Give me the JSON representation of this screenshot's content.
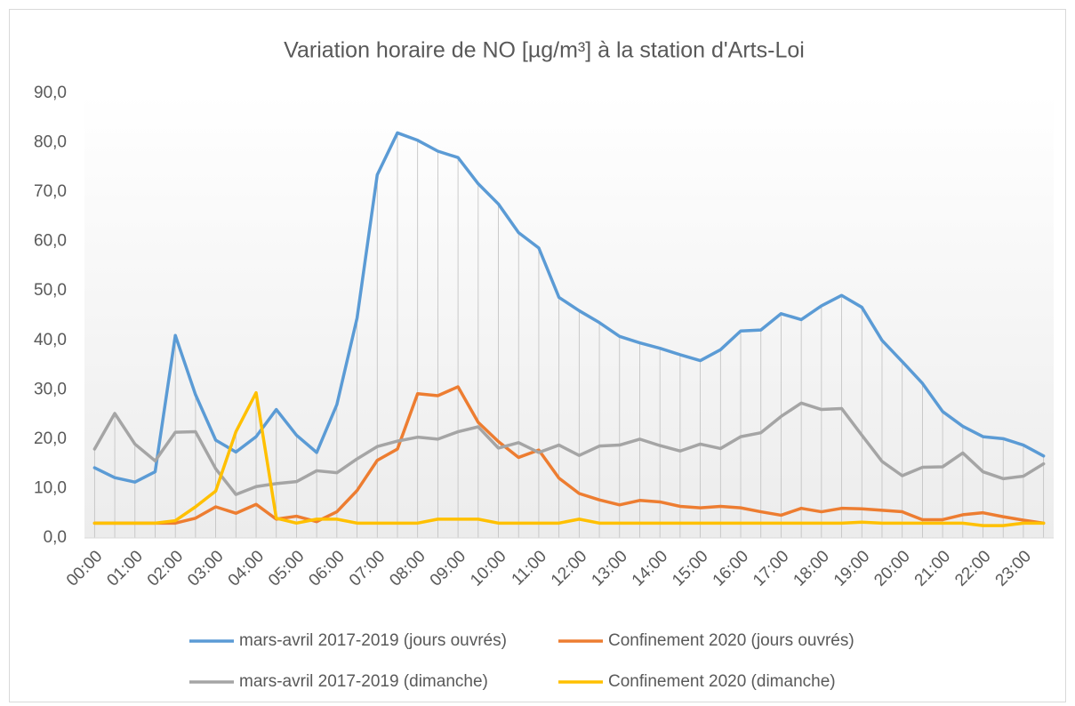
{
  "chart_data": {
    "type": "line",
    "title": "Variation horaire de NO [µg/m³] à la station d'Arts-Loi",
    "categories": [
      "00:00",
      null,
      "01:00",
      null,
      "02:00",
      null,
      "03:00",
      null,
      "04:00",
      null,
      "05:00",
      null,
      "06:00",
      null,
      "07:00",
      null,
      "08:00",
      null,
      "09:00",
      null,
      "10:00",
      null,
      "11:00",
      null,
      "12:00",
      null,
      "13:00",
      null,
      "14:00",
      null,
      "15:00",
      null,
      "16:00",
      null,
      "17:00",
      null,
      "18:00",
      null,
      "19:00",
      null,
      "20:00",
      null,
      "21:00",
      null,
      "22:00",
      null,
      "23:00",
      null
    ],
    "series": [
      {
        "name": "mars-avril 2017-2019 (jours ouvrés)",
        "color": "#5b9bd5",
        "values": [
          14.2,
          12.2,
          11.3,
          13.4,
          41,
          29,
          19.8,
          17.4,
          20.5,
          26,
          20.8,
          17.3,
          27,
          44.5,
          73.5,
          82,
          80.5,
          78.3,
          77,
          71.7,
          67.6,
          61.8,
          58.7,
          48.7,
          46,
          43.6,
          40.8,
          39.5,
          38.4,
          37.1,
          35.9,
          38.1,
          41.9,
          42.1,
          45.4,
          44.2,
          47,
          49.1,
          46.7,
          40,
          35.7,
          31.3,
          25.6,
          22.6,
          20.5,
          20.1,
          18.8,
          16.6
        ]
      },
      {
        "name": "Confinement 2020 (jours ouvrés)",
        "color": "#ed7d31",
        "values": [
          3,
          3,
          3,
          3,
          3,
          4,
          6.3,
          5,
          6.8,
          3.8,
          4.4,
          3.3,
          5.3,
          9.6,
          15.7,
          18,
          29.2,
          28.8,
          30.6,
          23.4,
          19.5,
          16.3,
          17.8,
          12.1,
          9,
          7.7,
          6.7,
          7.6,
          7.3,
          6.4,
          6.1,
          6.4,
          6.1,
          5.3,
          4.6,
          6,
          5.3,
          6,
          5.9,
          5.6,
          5.3,
          3.7,
          3.7,
          4.7,
          5.1,
          4.3,
          3.6,
          3
        ]
      },
      {
        "name": "mars-avril 2017-2019 (dimanche)",
        "color": "#a5a5a5",
        "values": [
          18,
          25.2,
          19,
          15.6,
          21.4,
          21.5,
          14,
          8.8,
          10.4,
          11,
          11.4,
          13.6,
          13.2,
          16,
          18.5,
          19.6,
          20.4,
          20,
          21.5,
          22.5,
          18.2,
          19.3,
          17.3,
          18.8,
          16.7,
          18.6,
          18.8,
          20,
          18.7,
          17.6,
          19,
          18.1,
          20.5,
          21.3,
          24.6,
          27.3,
          26,
          26.2,
          20.8,
          15.5,
          12.6,
          14.3,
          14.4,
          17.2,
          13.4,
          12,
          12.5,
          15
        ]
      },
      {
        "name": "Confinement 2020 (dimanche)",
        "color": "#ffc000",
        "values": [
          3,
          3,
          3,
          3,
          3.5,
          6.3,
          9.5,
          21.5,
          29.4,
          4,
          3,
          3.8,
          3.8,
          3,
          3,
          3,
          3,
          3.8,
          3.8,
          3.8,
          3,
          3,
          3,
          3,
          3.8,
          3,
          3,
          3,
          3,
          3,
          3,
          3,
          3,
          3,
          3,
          3,
          3,
          3,
          3.2,
          3,
          3,
          3,
          3,
          3,
          2.5,
          2.5,
          3,
          3
        ]
      }
    ],
    "ylim": [
      0,
      90
    ],
    "yticks": [
      {
        "value": 0,
        "label": "0,0"
      },
      {
        "value": 10,
        "label": "10,0"
      },
      {
        "value": 20,
        "label": "20,0"
      },
      {
        "value": 30,
        "label": "30,0"
      },
      {
        "value": 40,
        "label": "40,0"
      },
      {
        "value": 50,
        "label": "50,0"
      },
      {
        "value": 60,
        "label": "60,0"
      },
      {
        "value": 70,
        "label": "70,0"
      },
      {
        "value": 80,
        "label": "80,0"
      },
      {
        "value": 90,
        "label": "90,0"
      }
    ],
    "legend": "bottom"
  }
}
